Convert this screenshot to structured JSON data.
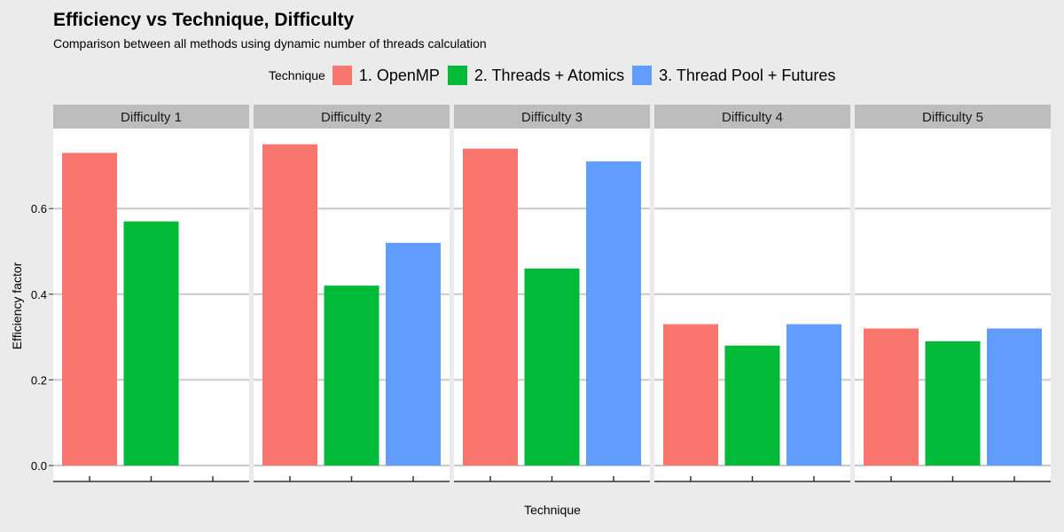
{
  "chart_data": {
    "type": "bar",
    "title": "Efficiency vs Technique, Difficulty",
    "subtitle": "Comparison between all methods using dynamic number of threads calculation",
    "xlabel": "Technique",
    "ylabel": "Efficiency factor",
    "ylim": [
      0,
      0.8
    ],
    "yticks": [
      "0.0",
      "0.2",
      "0.4",
      "0.6"
    ],
    "ytick_values": [
      0,
      0.2,
      0.4,
      0.6
    ],
    "grid": true,
    "legend_title": "Technique",
    "legend_position": "top",
    "panels": [
      "Difficulty 1",
      "Difficulty 2",
      "Difficulty 3",
      "Difficulty 4",
      "Difficulty 5"
    ],
    "series": [
      {
        "name": "1. OpenMP",
        "color": "#F8766D",
        "values": [
          0.73,
          0.75,
          0.74,
          0.33,
          0.32
        ]
      },
      {
        "name": "2. Threads + Atomics",
        "color": "#00BA38",
        "values": [
          0.57,
          0.42,
          0.46,
          0.28,
          0.29
        ]
      },
      {
        "name": "3. Thread Pool + Futures",
        "color": "#619CFF",
        "values": [
          null,
          0.52,
          0.71,
          0.33,
          0.32
        ]
      }
    ]
  }
}
